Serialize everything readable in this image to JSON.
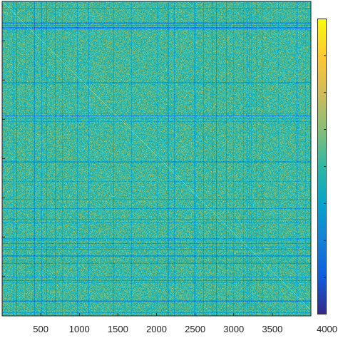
{
  "chart_data": {
    "type": "heatmap",
    "title": "",
    "xlabel": "",
    "ylabel": "",
    "xlim": [
      0,
      4000
    ],
    "ylim": [
      0,
      4000
    ],
    "x_ticks": [
      500,
      1000,
      1500,
      2000,
      2500,
      3000,
      3500,
      4000
    ],
    "x_tick_labels": [
      "500",
      "1000",
      "1500",
      "2000",
      "2500",
      "3000",
      "3500",
      "4000"
    ],
    "y_reversed": true,
    "matrix_size": 4000,
    "value_distribution": {
      "background_level": 0.52,
      "noise_spread": 0.09,
      "low_value_line_color": "cyan/blue stripes at sparse rows and columns"
    },
    "colormap": "parula",
    "colormap_stops": [
      "#352a87",
      "#0f5cdd",
      "#1481d6",
      "#06a4ca",
      "#2eb7a4",
      "#87bf77",
      "#d1bb59",
      "#fec832",
      "#f9fb0e"
    ],
    "colorbar_visible": true,
    "colorbar_tick_labels_shown": false,
    "grid": false
  }
}
